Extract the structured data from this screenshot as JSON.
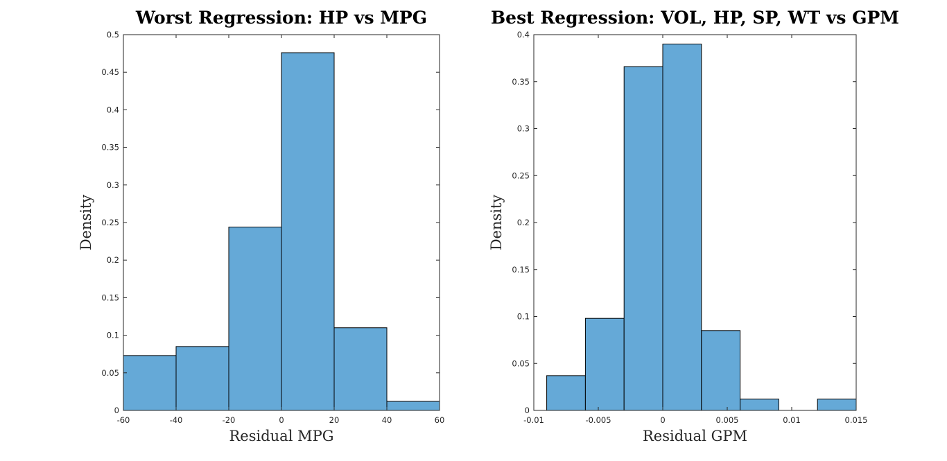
{
  "chart_data": [
    {
      "type": "bar",
      "subtype": "histogram",
      "title": "Worst Regression: HP vs MPG",
      "xlabel": "Residual MPG",
      "ylabel": "Density",
      "xlim": [
        -60,
        60
      ],
      "ylim": [
        0,
        0.5
      ],
      "xticks": [
        "-60",
        "-40",
        "-20",
        "0",
        "20",
        "40",
        "60"
      ],
      "yticks": [
        "0",
        "0.05",
        "0.1",
        "0.15",
        "0.2",
        "0.25",
        "0.3",
        "0.35",
        "0.4",
        "0.45",
        "0.5"
      ],
      "bins": [
        {
          "from": -60,
          "to": -40,
          "value": 0.073
        },
        {
          "from": -40,
          "to": -20,
          "value": 0.085
        },
        {
          "from": -20,
          "to": 0,
          "value": 0.244
        },
        {
          "from": 0,
          "to": 20,
          "value": 0.476
        },
        {
          "from": 20,
          "to": 40,
          "value": 0.11
        },
        {
          "from": 40,
          "to": 60,
          "value": 0.012
        }
      ],
      "bar_color": "#65a9d7",
      "grid": false
    },
    {
      "type": "bar",
      "subtype": "histogram",
      "title": "Best Regression: VOL, HP, SP, WT vs GPM",
      "xlabel": "Residual GPM",
      "ylabel": "Density",
      "xlim": [
        -0.01,
        0.015
      ],
      "ylim": [
        0,
        0.4
      ],
      "xticks": [
        "-0.01",
        "-0.005",
        "0",
        "0.005",
        "0.01",
        "0.015"
      ],
      "yticks": [
        "0",
        "0.05",
        "0.1",
        "0.15",
        "0.2",
        "0.25",
        "0.3",
        "0.35",
        "0.4"
      ],
      "bins": [
        {
          "from": -0.009,
          "to": -0.006,
          "value": 0.037
        },
        {
          "from": -0.006,
          "to": -0.003,
          "value": 0.098
        },
        {
          "from": -0.003,
          "to": 0.0,
          "value": 0.366
        },
        {
          "from": 0.0,
          "to": 0.003,
          "value": 0.39
        },
        {
          "from": 0.003,
          "to": 0.006,
          "value": 0.085
        },
        {
          "from": 0.006,
          "to": 0.009,
          "value": 0.012
        },
        {
          "from": 0.009,
          "to": 0.012,
          "value": 0.0
        },
        {
          "from": 0.012,
          "to": 0.015,
          "value": 0.012
        }
      ],
      "bar_color": "#65a9d7",
      "grid": false
    }
  ]
}
